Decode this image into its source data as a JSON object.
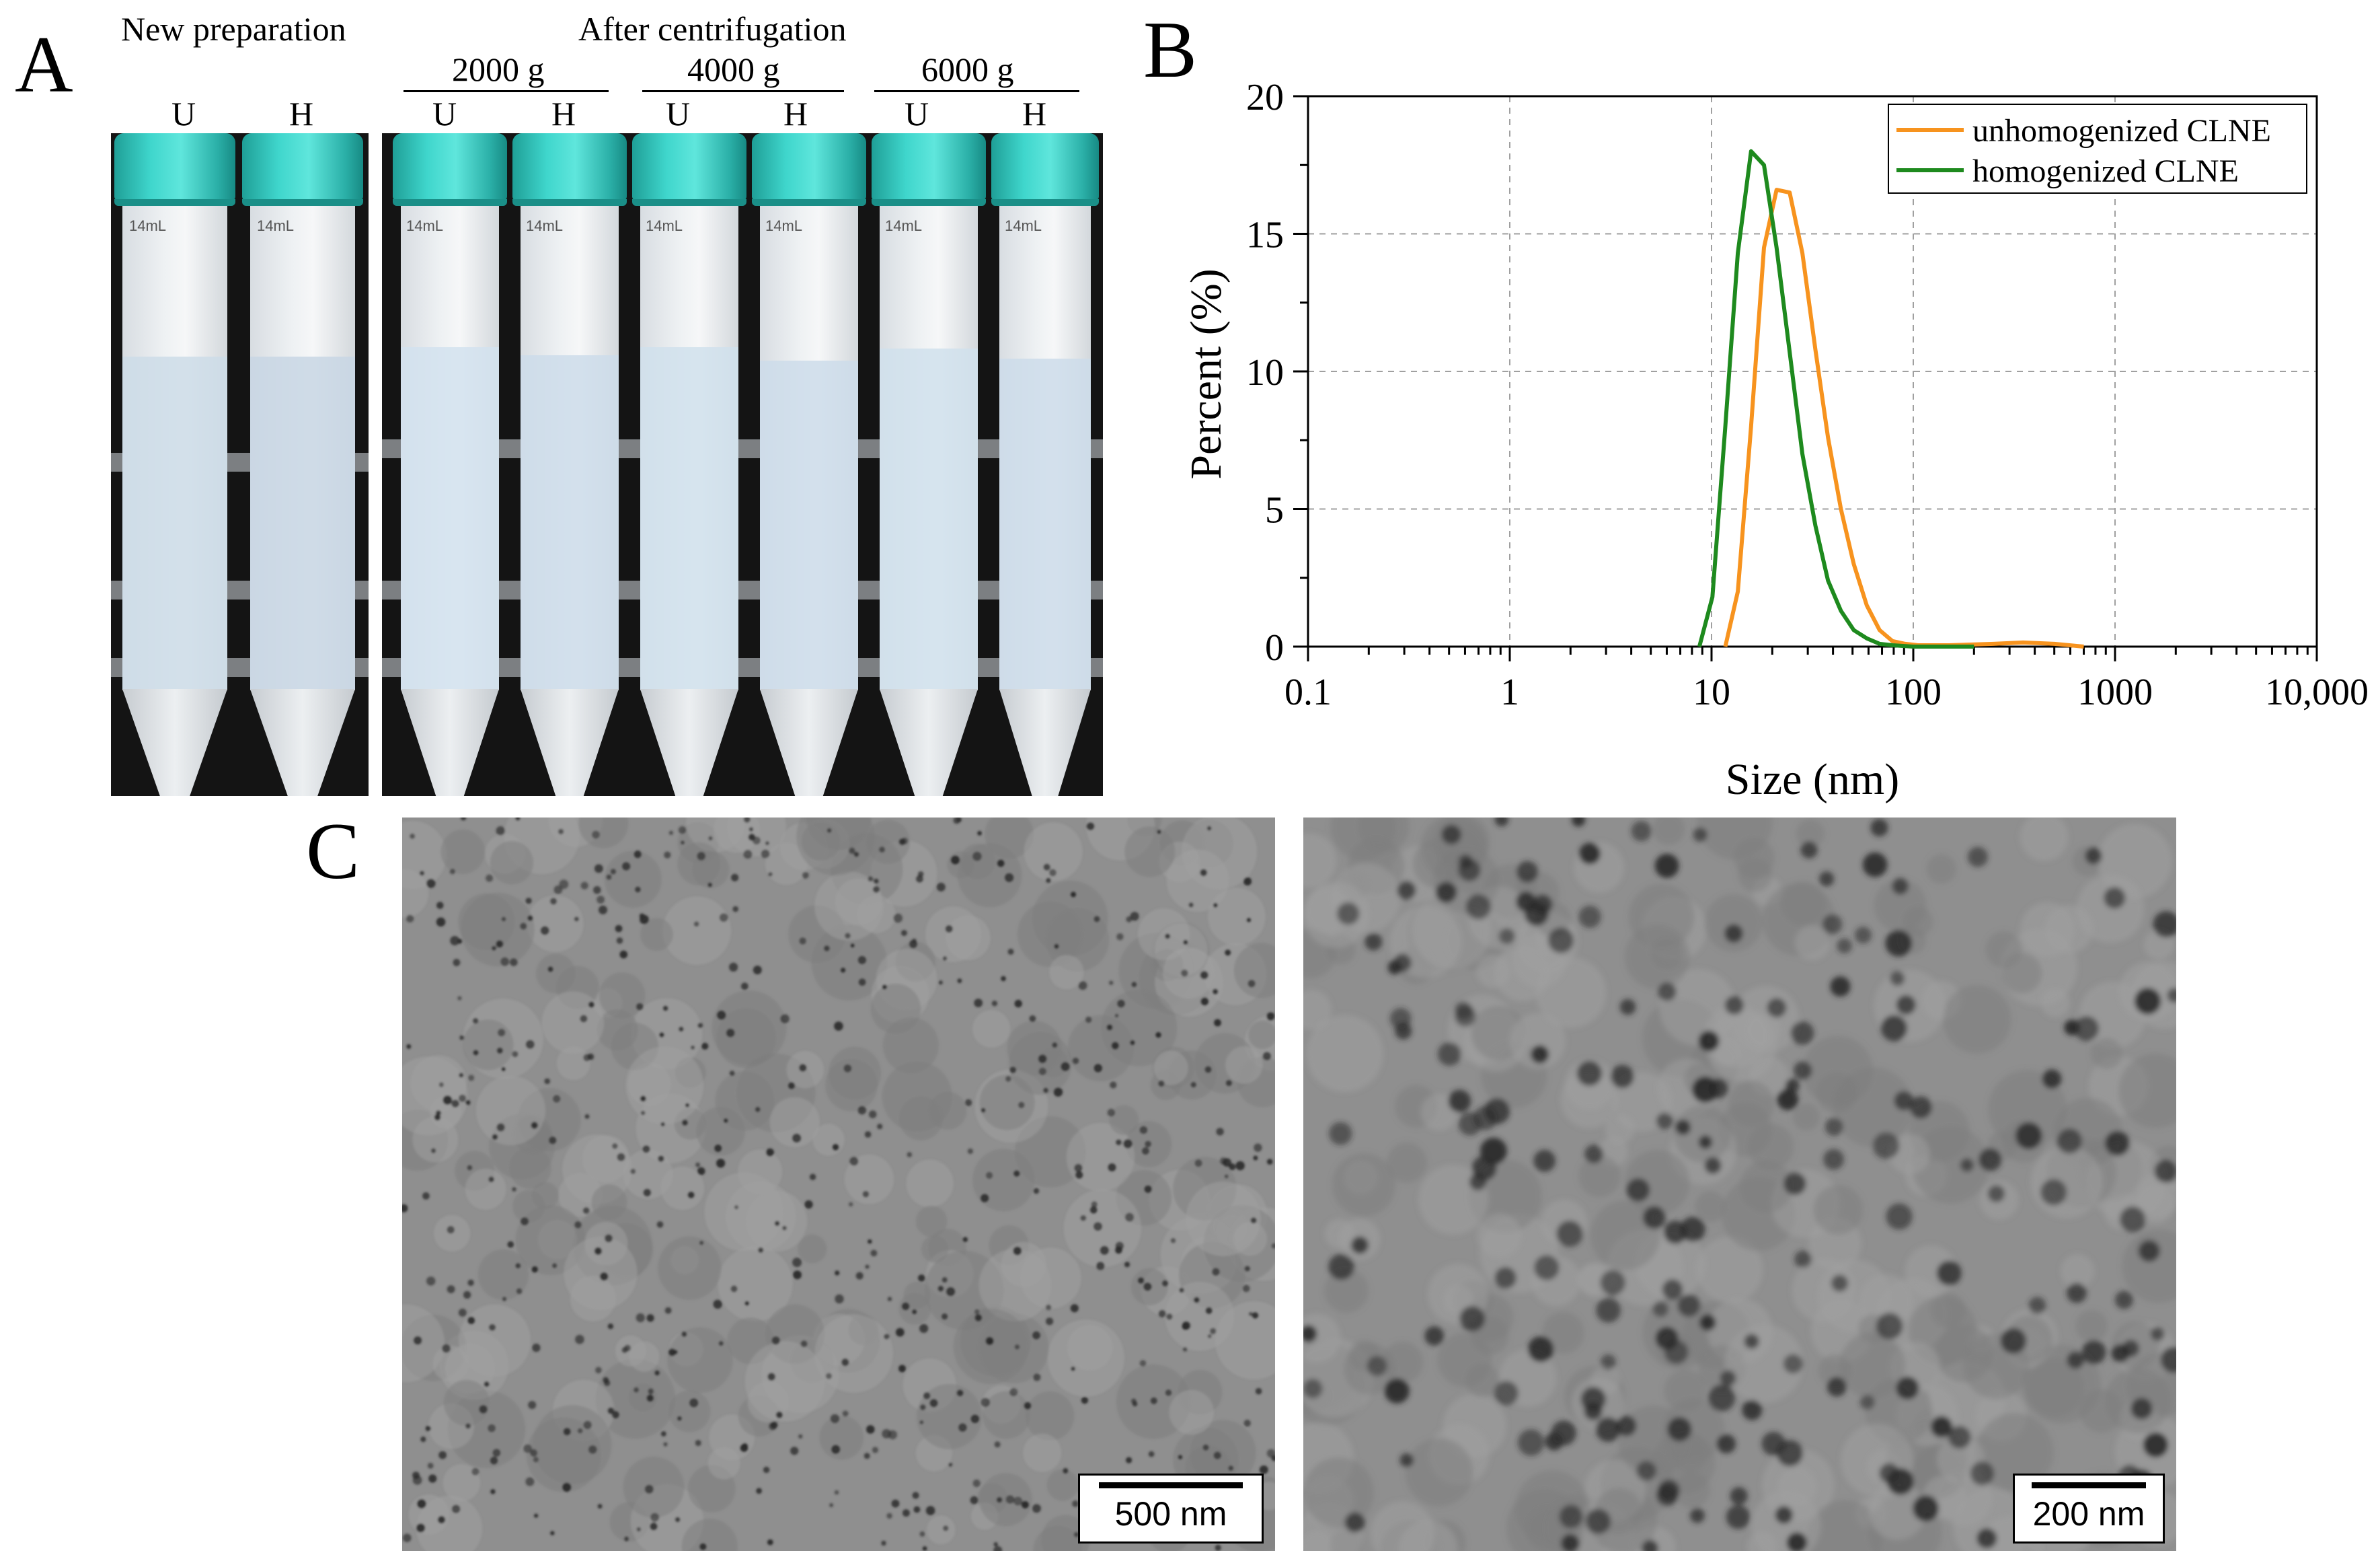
{
  "panel_A": {
    "letter": "A",
    "new_preparation": "New preparation",
    "after_centrifugation": "After centrifugation",
    "speeds": [
      "2000 g",
      "4000 g",
      "6000 g"
    ],
    "tube_labels": [
      "U",
      "H",
      "U",
      "H",
      "U",
      "H",
      "U",
      "H"
    ],
    "tube_volume_mark": "14mL"
  },
  "panel_B": {
    "letter": "B"
  },
  "panel_C": {
    "letter": "C",
    "scalebars": [
      "500 nm",
      "200 nm"
    ]
  },
  "colors": {
    "unhomogenized": "#f7931e",
    "homogenized": "#1e8a1e",
    "cap": "#3fd6cc"
  },
  "chart_data": {
    "type": "line",
    "xlabel": "Size (nm)",
    "ylabel": "Percent (%)",
    "x_scale": "log",
    "xlim": [
      0.1,
      10000
    ],
    "ylim": [
      0,
      20
    ],
    "x_ticks": [
      0.1,
      1,
      10,
      100,
      1000,
      10000
    ],
    "x_tick_labels": [
      "0.1",
      "1",
      "10",
      "100",
      "1000",
      "10,000"
    ],
    "y_ticks": [
      0,
      5,
      10,
      15,
      20
    ],
    "y_tick_labels": [
      "0",
      "5",
      "10",
      "15",
      "20"
    ],
    "grid": true,
    "legend_position": "top-right",
    "series": [
      {
        "name": "unhomogenized CLNE",
        "color": "#f7931e",
        "x": [
          11.7,
          13.5,
          15.7,
          18.2,
          21.0,
          24.4,
          28.2,
          32.7,
          37.8,
          43.8,
          50.7,
          58.8,
          68.1,
          78.8,
          91.3,
          105.7,
          150,
          250,
          350,
          500,
          700
        ],
        "y": [
          0,
          2.0,
          8.0,
          14.5,
          16.6,
          16.5,
          14.3,
          10.8,
          7.6,
          5.0,
          3.0,
          1.5,
          0.6,
          0.2,
          0.1,
          0.05,
          0.05,
          0.1,
          0.15,
          0.1,
          0
        ]
      },
      {
        "name": "homogenized CLNE",
        "color": "#1e8a1e",
        "x": [
          8.7,
          10.1,
          11.7,
          13.5,
          15.7,
          18.2,
          21.0,
          24.4,
          28.2,
          32.7,
          37.8,
          43.8,
          50.7,
          58.8,
          68.1,
          78.8,
          100,
          150,
          200
        ],
        "y": [
          0,
          1.8,
          8.0,
          14.3,
          18.0,
          17.5,
          14.5,
          10.7,
          7.0,
          4.4,
          2.4,
          1.3,
          0.6,
          0.3,
          0.1,
          0.05,
          0,
          0,
          0
        ]
      }
    ]
  }
}
